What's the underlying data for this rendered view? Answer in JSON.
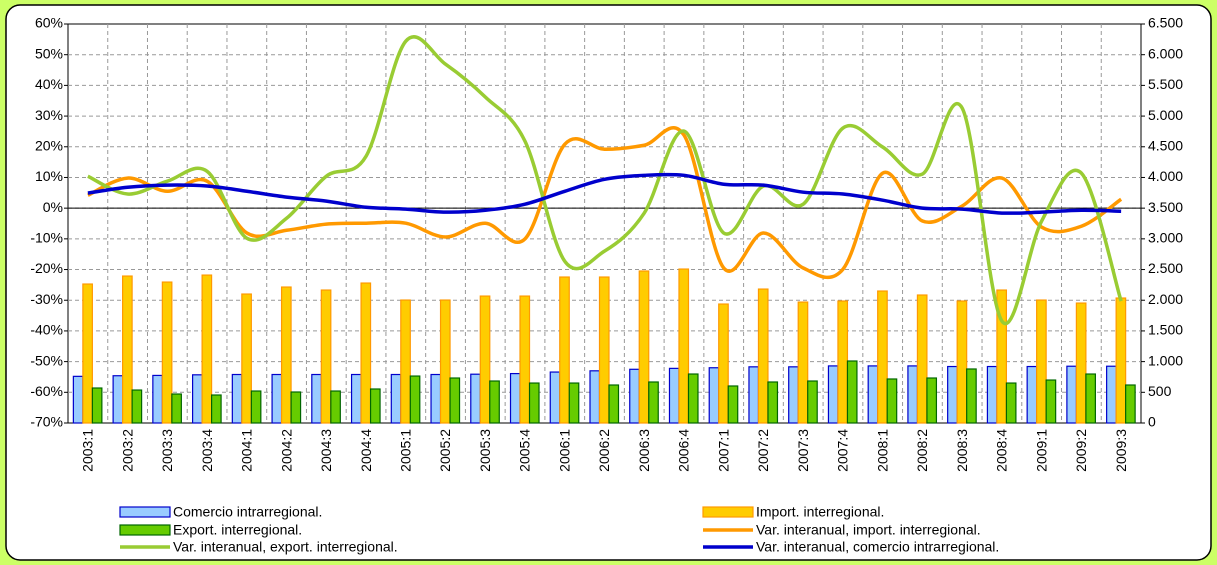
{
  "chart_data": {
    "type": "combo",
    "categories": [
      "2003:1",
      "2003:2",
      "2003:3",
      "2003:4",
      "2004:1",
      "2004:2",
      "2004:3",
      "2004:4",
      "2005:1",
      "2005:2",
      "2005:3",
      "2005:4",
      "2006:1",
      "2006:2",
      "2006:3",
      "2006:4",
      "2007:1",
      "2007:2",
      "2007:3",
      "2007:4",
      "2008:1",
      "2008:2",
      "2008:3",
      "2008:4",
      "2009:1",
      "2009:2",
      "2009:3"
    ],
    "ylim": [
      -70,
      60
    ],
    "yticks": [
      {
        "value": -70,
        "label": "-70%"
      },
      {
        "value": -60,
        "label": "-60%"
      },
      {
        "value": -50,
        "label": "-50%"
      },
      {
        "value": -40,
        "label": "-40%"
      },
      {
        "value": -30,
        "label": "-30%"
      },
      {
        "value": -20,
        "label": "-20%"
      },
      {
        "value": -10,
        "label": "-10%"
      },
      {
        "value": 0,
        "label": "0%"
      },
      {
        "value": 10,
        "label": "10%"
      },
      {
        "value": 20,
        "label": "20%"
      },
      {
        "value": 30,
        "label": "30%"
      },
      {
        "value": 40,
        "label": "40%"
      },
      {
        "value": 50,
        "label": "50%"
      },
      {
        "value": 60,
        "label": "60%"
      }
    ],
    "y2lim": [
      0,
      6500
    ],
    "y2ticks": [
      0,
      500,
      {
        "value": 1000,
        "label": "1.000"
      },
      {
        "value": 1500,
        "label": "1.500"
      },
      {
        "value": 2000,
        "label": "2.000"
      },
      {
        "value": 2500,
        "label": "2.500"
      },
      {
        "value": 3000,
        "label": "3.000"
      },
      {
        "value": 3500,
        "label": "3.500"
      },
      {
        "value": 4000,
        "label": "4.000"
      },
      {
        "value": 4500,
        "label": "4.500"
      },
      {
        "value": 5000,
        "label": "5.000"
      },
      {
        "value": 5500,
        "label": "5.500"
      },
      {
        "value": 6000,
        "label": "6.000"
      },
      {
        "value": 6500,
        "label": "6.500"
      }
    ],
    "grid": true,
    "series": [
      {
        "name": "Comercio intrarregional.",
        "type": "bar",
        "axis": "y2",
        "color": "#99ccff",
        "values": [
          760,
          770,
          775,
          785,
          790,
          790,
          790,
          790,
          790,
          790,
          795,
          805,
          830,
          850,
          875,
          890,
          900,
          915,
          915,
          930,
          930,
          930,
          920,
          920,
          920,
          925,
          925
        ]
      },
      {
        "name": "Import. interregional.",
        "type": "bar",
        "axis": "y2",
        "color": "#ffcc00",
        "values": [
          2264,
          2394,
          2296,
          2410,
          2101,
          2215,
          2166,
          2280,
          2003,
          2003,
          2068,
          2068,
          2378,
          2378,
          2476,
          2508,
          1938,
          2182,
          1970,
          1987,
          2150,
          2085,
          1987,
          2166,
          2003,
          1954,
          2036
        ]
      },
      {
        "name": "Export. interregional.",
        "type": "bar",
        "axis": "y2",
        "color": "#66cc00",
        "values": [
          570,
          537,
          472,
          456,
          521,
          505,
          521,
          554,
          765,
          733,
          684,
          651,
          651,
          619,
          668,
          798,
          603,
          668,
          684,
          1010,
          717,
          733,
          880,
          651,
          700,
          798,
          619
        ]
      },
      {
        "name": "Var. interanual, import. interregional.",
        "type": "line",
        "color": "#ff9900",
        "values": [
          4.2,
          9.8,
          5.5,
          8.8,
          -8.1,
          -7.2,
          -5.2,
          -4.9,
          -4.9,
          -9.4,
          -4.9,
          -10,
          20.8,
          19.2,
          20.5,
          23.8,
          -19.5,
          -8.1,
          -19.5,
          -19.9,
          11.4,
          -4.2,
          0.7,
          9.8,
          -6.2,
          -5.9,
          2.9
        ]
      },
      {
        "name": "Var. interanual, export. interregional.",
        "type": "line",
        "color": "#99cc33",
        "values": [
          10.4,
          4.6,
          8.8,
          12,
          -9.8,
          -3.3,
          10.4,
          16.9,
          54.4,
          46.9,
          36.2,
          21.8,
          -17.3,
          -14,
          -1.6,
          25.1,
          -8.1,
          7.2,
          1.3,
          26.1,
          19.9,
          11.1,
          32.6,
          -36.8,
          -4.2,
          11.4,
          -30.3
        ]
      },
      {
        "name": "Var. interanual, comercio intrarregional.",
        "type": "line",
        "color": "#0000cc",
        "values": [
          4.9,
          6.8,
          7.5,
          7.2,
          5.5,
          3.6,
          2.3,
          0.3,
          -0.3,
          -1.3,
          -0.7,
          1.3,
          5.5,
          9.4,
          10.7,
          10.7,
          7.8,
          7.5,
          5.2,
          4.6,
          2.6,
          0,
          -0.3,
          -1.6,
          -1.3,
          -0.7,
          -1
        ]
      }
    ]
  }
}
